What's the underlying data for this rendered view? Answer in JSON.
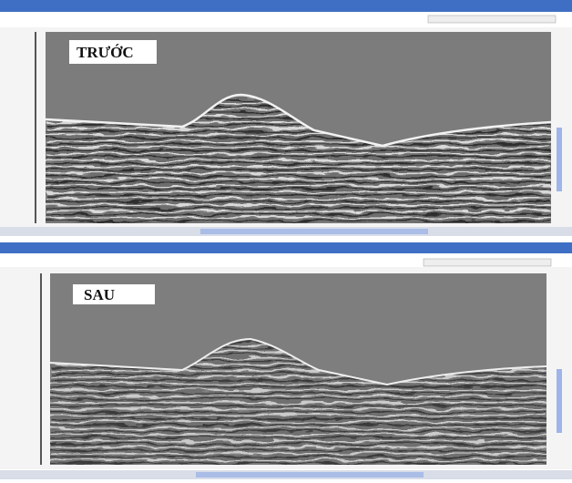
{
  "panels": [
    {
      "label": "TRƯỚC"
    },
    {
      "label": "SAU"
    }
  ]
}
